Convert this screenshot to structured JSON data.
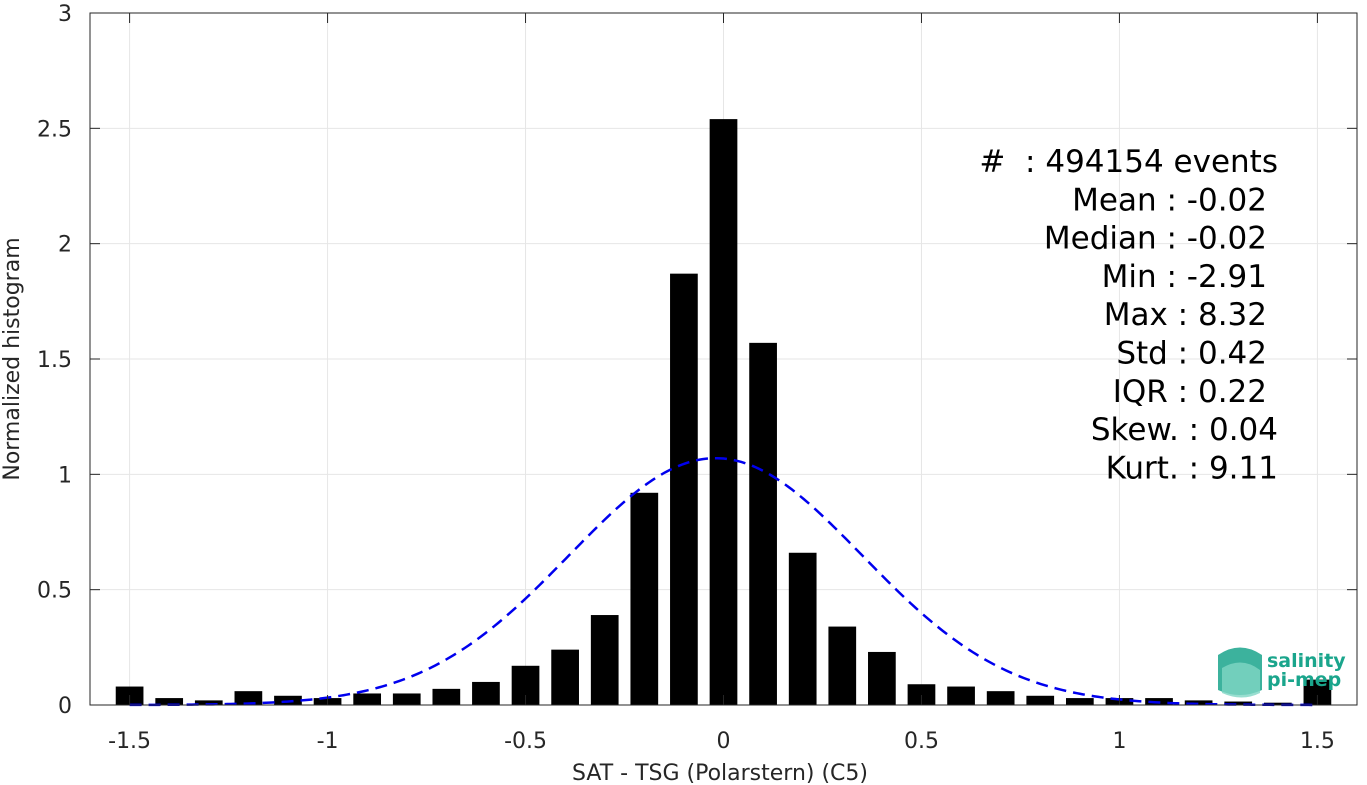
{
  "chart_data": {
    "type": "bar",
    "xlabel": "SAT - TSG (Polarstern) (C5)",
    "ylabel": "Normalized histogram",
    "xlim": [
      -1.6,
      1.6
    ],
    "ylim": [
      0,
      3
    ],
    "xticks": [
      "-1.5",
      "-1",
      "-0.5",
      "0",
      "0.5",
      "1",
      "1.5"
    ],
    "yticks": [
      "0",
      "0.5",
      "1",
      "1.5",
      "2",
      "2.5",
      "3"
    ],
    "grid": true,
    "x": [
      -1.5,
      -1.4,
      -1.3,
      -1.2,
      -1.1,
      -1.0,
      -0.9,
      -0.8,
      -0.7,
      -0.6,
      -0.5,
      -0.4,
      -0.3,
      -0.2,
      -0.1,
      0.0,
      0.1,
      0.2,
      0.3,
      0.4,
      0.5,
      0.6,
      0.7,
      0.8,
      0.9,
      1.0,
      1.1,
      1.2,
      1.3,
      1.4,
      1.5
    ],
    "values": [
      0.08,
      0.03,
      0.02,
      0.06,
      0.04,
      0.03,
      0.05,
      0.05,
      0.07,
      0.1,
      0.17,
      0.24,
      0.39,
      0.92,
      1.87,
      2.54,
      1.57,
      0.66,
      0.34,
      0.23,
      0.09,
      0.08,
      0.06,
      0.04,
      0.03,
      0.03,
      0.03,
      0.02,
      0.015,
      0.01,
      0.11
    ],
    "fit": {
      "type": "gaussian",
      "mean": -0.02,
      "std": 0.37,
      "peak": 1.07,
      "color": "#0000ee",
      "style": "dashed"
    },
    "bar_color": "#000000",
    "stats": [
      "#  : 494154 events",
      "Mean : -0.02",
      "Median : -0.02",
      "Min : -2.91",
      "Max : 8.32",
      "Std : 0.42",
      "IQR : 0.22",
      "Skew. : 0.04",
      "Kurt. : 9.11"
    ]
  },
  "logo": {
    "line1": "salinity",
    "line2": "pi-mep",
    "color": "#1aa58c"
  }
}
